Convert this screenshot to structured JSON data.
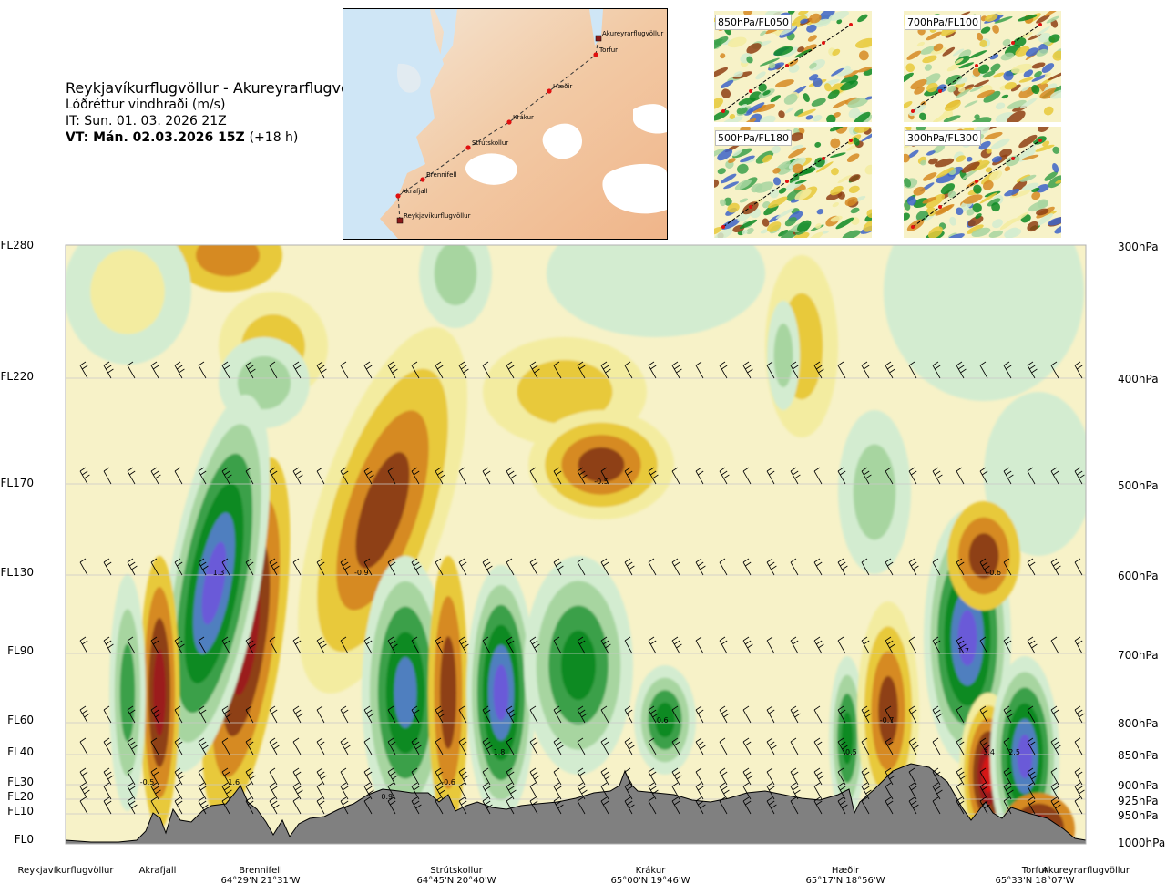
{
  "header": {
    "route": "Reykjavíkurflugvöllur - Akureyrarflugvöllur",
    "field": "Lóðréttur vindhraði (m/s)",
    "it_label": "IT: Sun. 01. 03. 2026 21Z",
    "vt_label": "VT: Mán. 02.03.2026 15Z",
    "vt_offset": "(+18 h)"
  },
  "route_map": {
    "points": [
      {
        "name": "Akureyrarflugvöllur"
      },
      {
        "name": "Torfur"
      },
      {
        "name": "Hæðir"
      },
      {
        "name": "Krákur"
      },
      {
        "name": "Strútskollur"
      },
      {
        "name": "Brennifell"
      },
      {
        "name": "Akrafjall"
      },
      {
        "name": "Reykjavíkurflugvöllur"
      }
    ]
  },
  "level_maps": [
    {
      "label": "850hPa/FL050"
    },
    {
      "label": "700hPa/FL100"
    },
    {
      "label": "500hPa/FL180"
    },
    {
      "label": "300hPa/FL300"
    }
  ],
  "chart_data": {
    "type": "heatmap",
    "title": "Reykjavíkurflugvöllur - Akureyrarflugvöllur",
    "units": "m/s",
    "left_axis": [
      "FL280",
      "FL220",
      "FL170",
      "FL130",
      "FL90",
      "FL60",
      "FL40",
      "FL30",
      "FL20",
      "FL10",
      "FL0"
    ],
    "right_axis": [
      "300hPa",
      "400hPa",
      "500hPa",
      "600hPa",
      "700hPa",
      "800hPa",
      "850hPa",
      "900hPa",
      "925hPa",
      "950hPa",
      "1000hPa"
    ],
    "waypoints": [
      {
        "name": "Reykjavíkurflugvöllur",
        "coord": ""
      },
      {
        "name": "Akrafjall",
        "coord": ""
      },
      {
        "name": "Brennifell",
        "coord": "64°29'N 21°31'W"
      },
      {
        "name": "Strútskollur",
        "coord": "64°45'N 20°40'W"
      },
      {
        "name": "Krákur",
        "coord": "65°00'N 19°46'W"
      },
      {
        "name": "Hæðir",
        "coord": "65°17'N 18°56'W"
      },
      {
        "name": "Torfur",
        "coord": "65°33'N 18°07'W"
      },
      {
        "name": "Akureyrarflugvöllur",
        "coord": ""
      }
    ],
    "value_labels": [
      {
        "text": "-0.5",
        "distance": 0.08,
        "pressure": 900
      },
      {
        "text": "1.6",
        "distance": 0.165,
        "pressure": 900
      },
      {
        "text": "1.3",
        "distance": 0.15,
        "pressure": 600
      },
      {
        "text": "-0.9",
        "distance": 0.29,
        "pressure": 600
      },
      {
        "text": "0.9",
        "distance": 0.315,
        "pressure": 925
      },
      {
        "text": "-0.6",
        "distance": 0.375,
        "pressure": 900
      },
      {
        "text": "1.8",
        "distance": 0.425,
        "pressure": 850
      },
      {
        "text": "-0.5",
        "distance": 0.525,
        "pressure": 500
      },
      {
        "text": "0.6",
        "distance": 0.585,
        "pressure": 800
      },
      {
        "text": "0.5",
        "distance": 0.77,
        "pressure": 850
      },
      {
        "text": "-0.7",
        "distance": 0.805,
        "pressure": 800
      },
      {
        "text": "1.7",
        "distance": 0.88,
        "pressure": 700
      },
      {
        "text": "-0.6",
        "distance": 0.91,
        "pressure": 600
      },
      {
        "text": "3.4",
        "distance": 0.905,
        "pressure": 850
      },
      {
        "text": "2.5",
        "distance": 0.93,
        "pressure": 850
      }
    ],
    "grid": true,
    "colors": {
      "strong_up": "#6a5ad8",
      "up_steel": "#4f7fbf",
      "up_green": "#0d8a23",
      "up_mid": "#3aa04a",
      "up_light": "#a7d5a0",
      "up_faint": "#d3ecd0",
      "neutral": "#f7f2c8",
      "down_light": "#f3eca0",
      "down_yellow": "#e8c93a",
      "down_orange": "#d68a22",
      "down_brown": "#8e3f14",
      "down_red": "#9b1c1c",
      "strong_red": "#d51414",
      "terrain": "#808080"
    }
  }
}
